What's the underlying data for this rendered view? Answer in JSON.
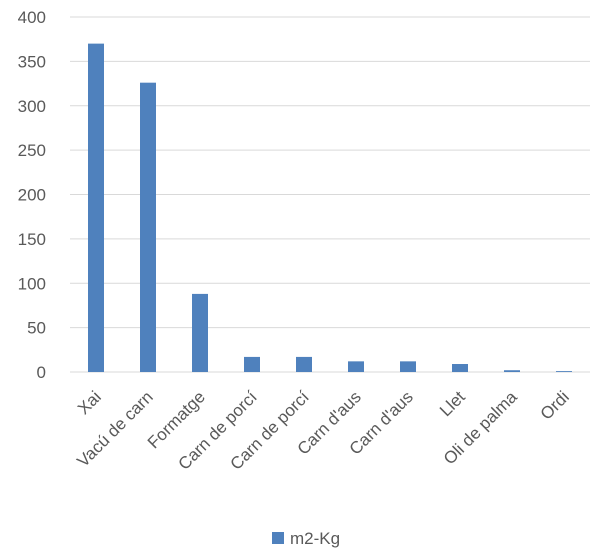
{
  "chart_data": {
    "type": "bar",
    "categories": [
      "Xai",
      "Vacú de carn",
      "Formatge",
      "Carn de porcí",
      "Carn de porcí",
      "Carn d'aus",
      "Carn d'aus",
      "Llet",
      "Oli de palma",
      "Ordi"
    ],
    "series": [
      {
        "name": "m2-Kg",
        "values": [
          370,
          326,
          88,
          17,
          17,
          12,
          12,
          9,
          2,
          1
        ]
      }
    ],
    "ylim": [
      0,
      400
    ],
    "yticks": [
      0,
      50,
      100,
      150,
      200,
      250,
      300,
      350,
      400
    ],
    "grid": true,
    "legend": "bottom",
    "colors": {
      "bar": "#4f81bd"
    }
  }
}
